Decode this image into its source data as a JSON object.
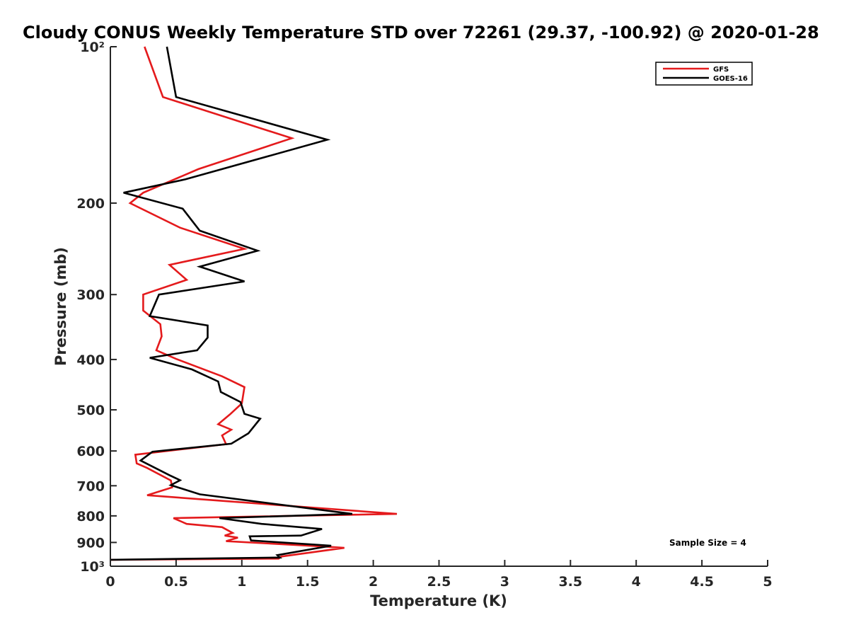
{
  "chart_data": {
    "type": "line",
    "title": "Cloudy CONUS Weekly Temperature STD over 72261 (29.37, -100.92) @ 2020-01-28",
    "xlabel": "Temperature (K)",
    "ylabel": "Pressure (mb)",
    "xlim": [
      0,
      5
    ],
    "ylim": [
      100,
      1000
    ],
    "y_scale": "log",
    "y_reversed": true,
    "x_ticks": [
      0,
      0.5,
      1,
      1.5,
      2,
      2.5,
      3,
      3.5,
      4,
      4.5,
      5
    ],
    "x_tick_labels": [
      "0",
      "0.5",
      "1",
      "1.5",
      "2",
      "2.5",
      "3",
      "3.5",
      "4",
      "4.5",
      "5"
    ],
    "y_ticks": [
      100,
      200,
      300,
      400,
      500,
      600,
      700,
      800,
      900,
      1000
    ],
    "y_tick_labels": [
      "10²",
      "200",
      "300",
      "400",
      "500",
      "600",
      "700",
      "800",
      "900",
      "10³"
    ],
    "grid": false,
    "legend_position": "top-right",
    "series": [
      {
        "name": "GFS",
        "color": "#e41a1c",
        "points": [
          [
            0.26,
            100
          ],
          [
            0.4,
            125
          ],
          [
            1.38,
            150
          ],
          [
            0.67,
            172
          ],
          [
            0.25,
            191
          ],
          [
            0.15,
            200
          ],
          [
            0.53,
            223
          ],
          [
            1.02,
            245
          ],
          [
            0.45,
            263
          ],
          [
            0.58,
            281
          ],
          [
            0.25,
            300
          ],
          [
            0.25,
            322
          ],
          [
            0.38,
            342
          ],
          [
            0.39,
            361
          ],
          [
            0.35,
            384
          ],
          [
            0.5,
            399
          ],
          [
            0.85,
            431
          ],
          [
            1.02,
            452
          ],
          [
            1.0,
            486
          ],
          [
            0.91,
            510
          ],
          [
            0.82,
            533
          ],
          [
            0.92,
            546
          ],
          [
            0.85,
            560
          ],
          [
            0.88,
            582
          ],
          [
            0.19,
            610
          ],
          [
            0.2,
            634
          ],
          [
            0.28,
            647
          ],
          [
            0.46,
            684
          ],
          [
            0.47,
            705
          ],
          [
            0.28,
            730
          ],
          [
            2.18,
            793
          ],
          [
            0.48,
            808
          ],
          [
            0.58,
            829
          ],
          [
            0.85,
            841
          ],
          [
            0.93,
            863
          ],
          [
            0.87,
            873
          ],
          [
            0.97,
            881
          ],
          [
            0.88,
            895
          ],
          [
            1.65,
            917
          ],
          [
            1.78,
            922
          ],
          [
            1.3,
            958
          ],
          [
            1.28,
            967
          ],
          [
            0.0,
            972
          ]
        ]
      },
      {
        "name": "GOES-16",
        "color": "#000000",
        "points": [
          [
            0.43,
            100
          ],
          [
            0.5,
            125
          ],
          [
            1.65,
            151
          ],
          [
            0.57,
            180
          ],
          [
            0.1,
            191
          ],
          [
            0.55,
            205
          ],
          [
            0.68,
            226
          ],
          [
            1.12,
            247
          ],
          [
            0.68,
            265
          ],
          [
            1.02,
            283
          ],
          [
            0.37,
            300
          ],
          [
            0.3,
            330
          ],
          [
            0.74,
            344
          ],
          [
            0.74,
            363
          ],
          [
            0.66,
            384
          ],
          [
            0.3,
            397
          ],
          [
            0.62,
            418
          ],
          [
            0.82,
            441
          ],
          [
            0.84,
            462
          ],
          [
            0.99,
            483
          ],
          [
            1.02,
            509
          ],
          [
            1.14,
            520
          ],
          [
            1.05,
            555
          ],
          [
            0.92,
            581
          ],
          [
            0.32,
            602
          ],
          [
            0.23,
            626
          ],
          [
            0.45,
            668
          ],
          [
            0.53,
            683
          ],
          [
            0.46,
            698
          ],
          [
            0.68,
            727
          ],
          [
            1.84,
            793
          ],
          [
            0.83,
            808
          ],
          [
            1.15,
            829
          ],
          [
            1.61,
            848
          ],
          [
            1.45,
            873
          ],
          [
            1.06,
            876
          ],
          [
            1.07,
            892
          ],
          [
            1.68,
            913
          ],
          [
            1.27,
            952
          ],
          [
            1.29,
            962
          ],
          [
            0.0,
            972
          ]
        ]
      }
    ],
    "annotations": [
      "Sample Size = 4"
    ]
  }
}
